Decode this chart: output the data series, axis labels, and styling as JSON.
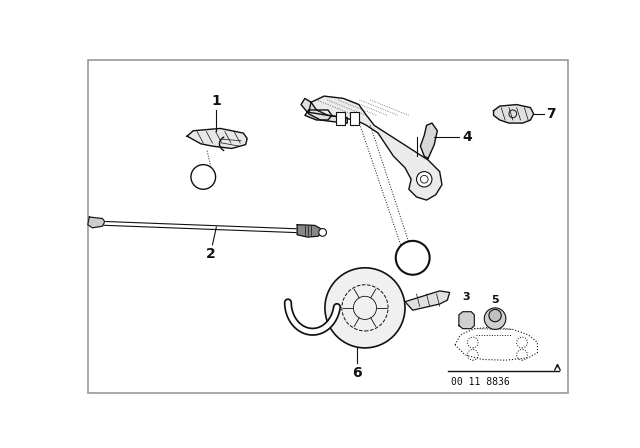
{
  "bg_color": "#ffffff",
  "border_color": "#aaaaaa",
  "line_color": "#111111",
  "fill_color": "#ffffff",
  "footer_text": "00 11 8836"
}
